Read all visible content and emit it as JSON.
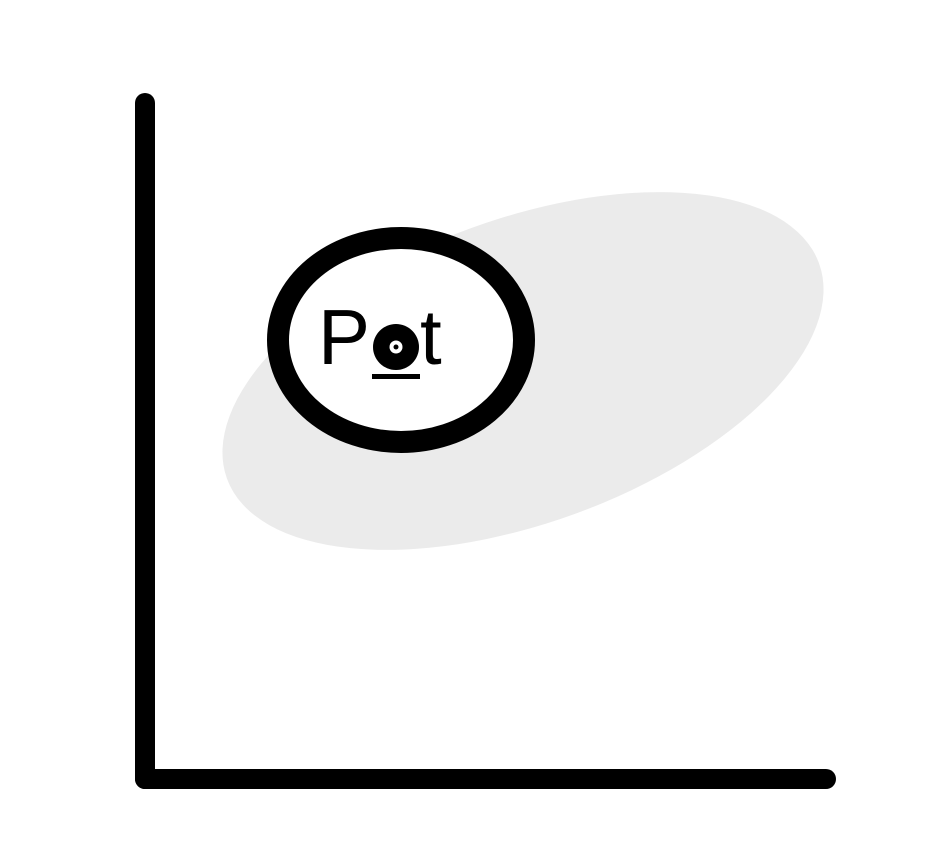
{
  "logo": {
    "prefix": "P",
    "suffix": "t",
    "icon": "record-dot-icon"
  },
  "colors": {
    "ink": "#000000",
    "background": "#ffffff",
    "region_fill": "#ebebeb"
  }
}
